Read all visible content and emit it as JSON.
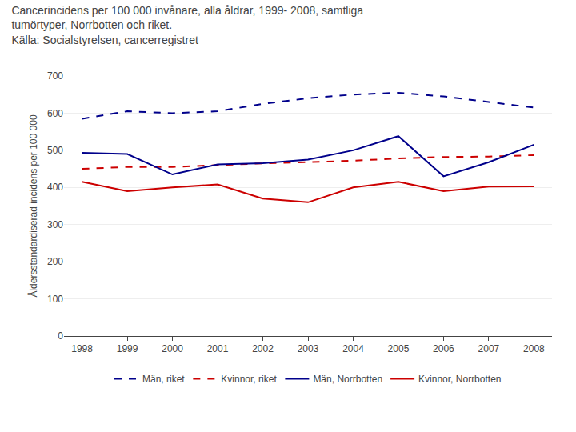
{
  "chart_data": {
    "type": "line",
    "title": "Cancerincidens per 100 000 invånare, alla åldrar, 1999- 2008, samtliga\ntumörtyper, Norrbotten och riket.",
    "subtitle": "Källa: Socialstyrelsen, cancerregistret",
    "y_label": "Åldersstandardiserad incidens per 100 000",
    "x": [
      1998,
      1999,
      2000,
      2001,
      2002,
      2003,
      2004,
      2005,
      2006,
      2007,
      2008
    ],
    "series": [
      {
        "name": "Män, riket",
        "color": "#00008B",
        "line_style": "dashed",
        "values": [
          585,
          605,
          600,
          605,
          625,
          640,
          650,
          655,
          645,
          630,
          615
        ]
      },
      {
        "name": "Kvinnor, riket",
        "color": "#cc0000",
        "line_style": "dashed",
        "values": [
          450,
          455,
          455,
          460,
          465,
          468,
          472,
          478,
          482,
          483,
          487
        ]
      },
      {
        "name": "Män, Norrbotten",
        "color": "#00008B",
        "line_style": "solid",
        "values": [
          493,
          490,
          435,
          462,
          465,
          475,
          500,
          538,
          430,
          468,
          515
        ]
      },
      {
        "name": "Kvinnor, Norrbotten",
        "color": "#cc0000",
        "line_style": "solid",
        "values": [
          415,
          390,
          400,
          408,
          370,
          360,
          400,
          415,
          390,
          402,
          403
        ]
      }
    ],
    "xlim": [
      1997.6,
      2008.4
    ],
    "xticks": [
      1998,
      1999,
      2000,
      2001,
      2002,
      2003,
      2004,
      2005,
      2006,
      2007,
      2008
    ],
    "ylim": [
      0,
      700
    ],
    "yticks": [
      0,
      100,
      200,
      300,
      400,
      500,
      600,
      700
    ],
    "grid": "y",
    "legend": "bottom"
  }
}
